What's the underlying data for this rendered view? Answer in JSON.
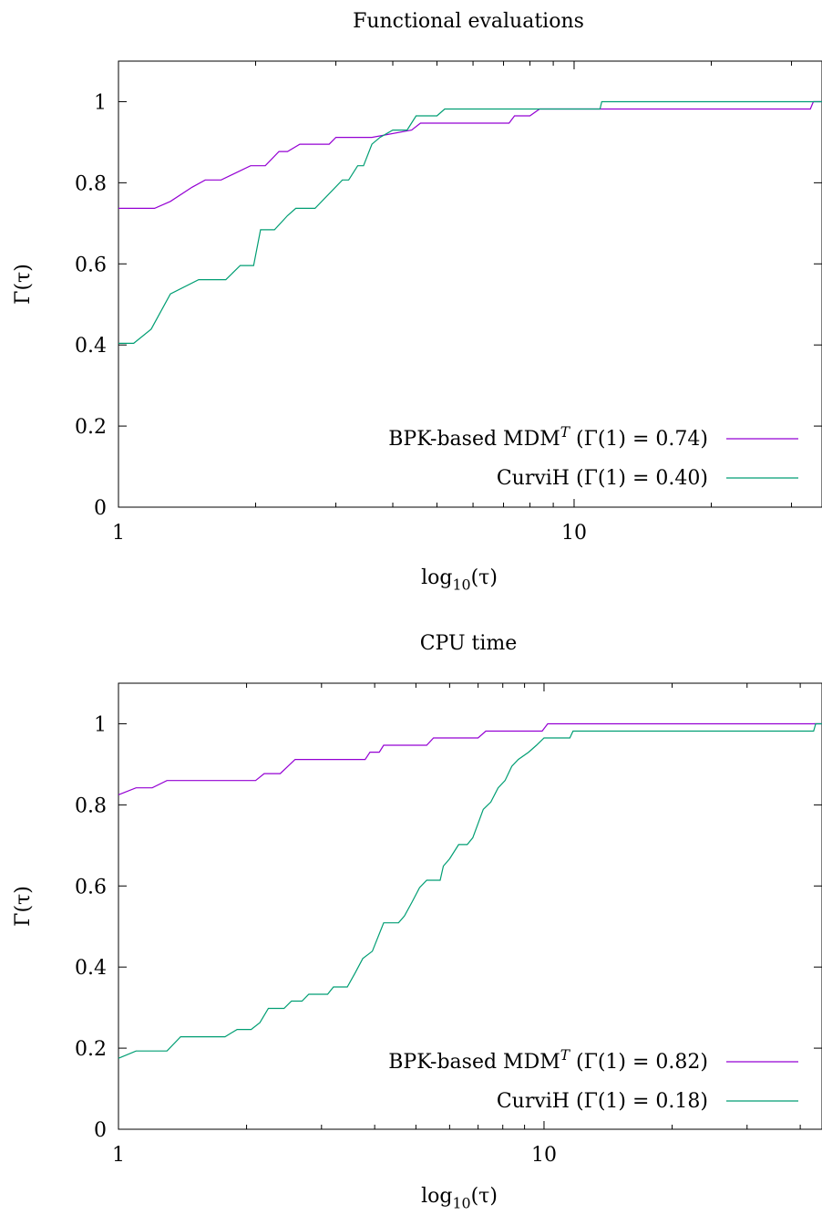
{
  "chart_data": [
    {
      "type": "line",
      "title": "Functional evaluations",
      "xlabel": "log10(τ)",
      "ylabel": "Γ(τ)",
      "xscale": "log",
      "xlim": [
        1,
        35
      ],
      "ylim": [
        0,
        1.1
      ],
      "xticks": [
        {
          "value": 1,
          "label": "1"
        },
        {
          "value": 10,
          "label": "10"
        }
      ],
      "yticks": [
        {
          "value": 0,
          "label": "0"
        },
        {
          "value": 0.2,
          "label": "0.2"
        },
        {
          "value": 0.4,
          "label": "0.4"
        },
        {
          "value": 0.6,
          "label": "0.6"
        },
        {
          "value": 0.8,
          "label": "0.8"
        },
        {
          "value": 1,
          "label": "1"
        }
      ],
      "grid": false,
      "legend": "bottom-right",
      "series": [
        {
          "name": "BPK-based MDMT (Γ(1) = 0.74)",
          "color": "#9400d3",
          "points": [
            [
              1,
              0.737
            ],
            [
              1.1,
              0.737
            ],
            [
              1.2,
              0.737
            ],
            [
              1.3,
              0.754
            ],
            [
              1.45,
              0.789
            ],
            [
              1.55,
              0.807
            ],
            [
              1.68,
              0.807
            ],
            [
              1.95,
              0.842
            ],
            [
              2.1,
              0.842
            ],
            [
              2.25,
              0.877
            ],
            [
              2.35,
              0.877
            ],
            [
              2.5,
              0.895
            ],
            [
              2.9,
              0.895
            ],
            [
              3.0,
              0.912
            ],
            [
              3.6,
              0.912
            ],
            [
              4.4,
              0.93
            ],
            [
              4.6,
              0.947
            ],
            [
              7.2,
              0.947
            ],
            [
              7.4,
              0.965
            ],
            [
              8.0,
              0.965
            ],
            [
              8.4,
              0.982
            ],
            [
              33.0,
              0.982
            ],
            [
              33.5,
              1.0
            ],
            [
              35.0,
              1.0
            ]
          ]
        },
        {
          "name": "CurviH (Γ(1) = 0.40)",
          "color": "#009e73",
          "points": [
            [
              1,
              0.404
            ],
            [
              1.08,
              0.404
            ],
            [
              1.18,
              0.439
            ],
            [
              1.3,
              0.526
            ],
            [
              1.5,
              0.561
            ],
            [
              1.72,
              0.561
            ],
            [
              1.85,
              0.596
            ],
            [
              1.98,
              0.596
            ],
            [
              2.05,
              0.684
            ],
            [
              2.2,
              0.684
            ],
            [
              2.35,
              0.719
            ],
            [
              2.45,
              0.737
            ],
            [
              2.7,
              0.737
            ],
            [
              3.1,
              0.807
            ],
            [
              3.2,
              0.807
            ],
            [
              3.35,
              0.842
            ],
            [
              3.45,
              0.842
            ],
            [
              3.6,
              0.895
            ],
            [
              3.75,
              0.912
            ],
            [
              4.0,
              0.93
            ],
            [
              4.3,
              0.93
            ],
            [
              4.5,
              0.965
            ],
            [
              5.0,
              0.965
            ],
            [
              5.2,
              0.982
            ],
            [
              7.0,
              0.982
            ],
            [
              11.4,
              0.982
            ],
            [
              11.5,
              1.0
            ],
            [
              35.0,
              1.0
            ]
          ]
        }
      ]
    },
    {
      "type": "line",
      "title": "CPU time",
      "xlabel": "log10(τ)",
      "ylabel": "Γ(τ)",
      "xscale": "log",
      "xlim": [
        1,
        45
      ],
      "ylim": [
        0,
        1.1
      ],
      "xticks": [
        {
          "value": 1,
          "label": "1"
        },
        {
          "value": 10,
          "label": "10"
        }
      ],
      "yticks": [
        {
          "value": 0,
          "label": "0"
        },
        {
          "value": 0.2,
          "label": "0.2"
        },
        {
          "value": 0.4,
          "label": "0.4"
        },
        {
          "value": 0.6,
          "label": "0.6"
        },
        {
          "value": 0.8,
          "label": "0.8"
        },
        {
          "value": 1,
          "label": "1"
        }
      ],
      "grid": false,
      "legend": "bottom-right",
      "series": [
        {
          "name": "BPK-based MDMT (Γ(1) = 0.82)",
          "color": "#9400d3",
          "points": [
            [
              1,
              0.825
            ],
            [
              1.1,
              0.842
            ],
            [
              1.2,
              0.842
            ],
            [
              1.3,
              0.86
            ],
            [
              2.1,
              0.86
            ],
            [
              2.2,
              0.877
            ],
            [
              2.4,
              0.877
            ],
            [
              2.6,
              0.912
            ],
            [
              3.8,
              0.912
            ],
            [
              3.9,
              0.93
            ],
            [
              4.1,
              0.93
            ],
            [
              4.2,
              0.947
            ],
            [
              5.3,
              0.947
            ],
            [
              5.5,
              0.965
            ],
            [
              7.0,
              0.965
            ],
            [
              7.3,
              0.982
            ],
            [
              9.9,
              0.982
            ],
            [
              10.2,
              1.0
            ],
            [
              45.0,
              1.0
            ]
          ]
        },
        {
          "name": "CurviH (Γ(1) = 0.18)",
          "color": "#009e73",
          "points": [
            [
              1,
              0.175
            ],
            [
              1.1,
              0.193
            ],
            [
              1.3,
              0.193
            ],
            [
              1.4,
              0.228
            ],
            [
              1.78,
              0.228
            ],
            [
              1.9,
              0.246
            ],
            [
              2.05,
              0.246
            ],
            [
              2.15,
              0.263
            ],
            [
              2.25,
              0.298
            ],
            [
              2.45,
              0.298
            ],
            [
              2.55,
              0.316
            ],
            [
              2.7,
              0.316
            ],
            [
              2.8,
              0.333
            ],
            [
              3.1,
              0.333
            ],
            [
              3.2,
              0.351
            ],
            [
              3.45,
              0.351
            ],
            [
              3.6,
              0.386
            ],
            [
              3.75,
              0.421
            ],
            [
              3.95,
              0.439
            ],
            [
              4.2,
              0.509
            ],
            [
              4.55,
              0.509
            ],
            [
              4.7,
              0.526
            ],
            [
              4.9,
              0.561
            ],
            [
              5.1,
              0.596
            ],
            [
              5.3,
              0.614
            ],
            [
              5.7,
              0.614
            ],
            [
              5.8,
              0.649
            ],
            [
              6.0,
              0.667
            ],
            [
              6.3,
              0.702
            ],
            [
              6.6,
              0.702
            ],
            [
              6.8,
              0.719
            ],
            [
              7.0,
              0.754
            ],
            [
              7.2,
              0.789
            ],
            [
              7.5,
              0.807
            ],
            [
              7.8,
              0.842
            ],
            [
              8.1,
              0.86
            ],
            [
              8.4,
              0.895
            ],
            [
              8.7,
              0.912
            ],
            [
              9.2,
              0.93
            ],
            [
              9.6,
              0.947
            ],
            [
              10.0,
              0.965
            ],
            [
              11.5,
              0.965
            ],
            [
              11.7,
              0.982
            ],
            [
              43.0,
              0.982
            ],
            [
              43.5,
              1.0
            ],
            [
              45.0,
              1.0
            ]
          ]
        }
      ]
    }
  ]
}
